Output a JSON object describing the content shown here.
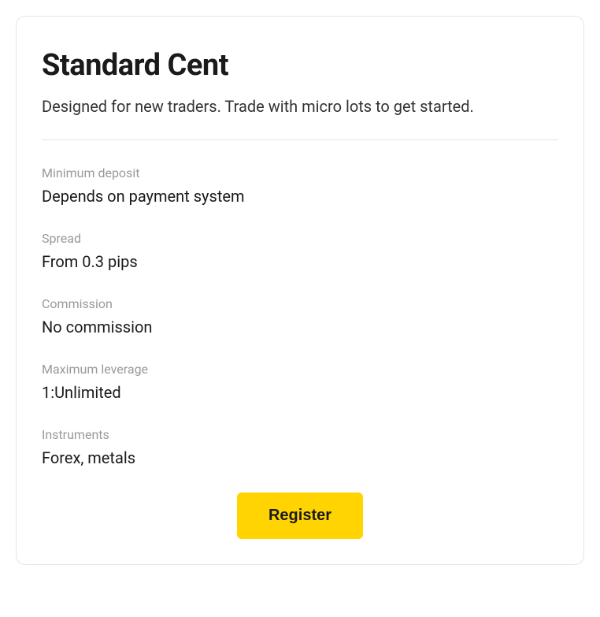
{
  "card": {
    "title": "Standard Cent",
    "subtitle": "Designed for new traders. Trade with micro lots to get started.",
    "features": [
      {
        "label": "Minimum deposit",
        "value": "Depends on payment system"
      },
      {
        "label": "Spread",
        "value": "From 0.3 pips"
      },
      {
        "label": "Commission",
        "value": "No commission"
      },
      {
        "label": "Maximum leverage",
        "value": "1:Unlimited"
      },
      {
        "label": "Instruments",
        "value": "Forex, metals"
      }
    ],
    "cta_label": "Register"
  },
  "colors": {
    "border": "#e5e5e5",
    "text_primary": "#1a1a1a",
    "text_secondary": "#999999",
    "text_body": "#333333",
    "button_bg": "#ffd400",
    "background": "#ffffff"
  }
}
